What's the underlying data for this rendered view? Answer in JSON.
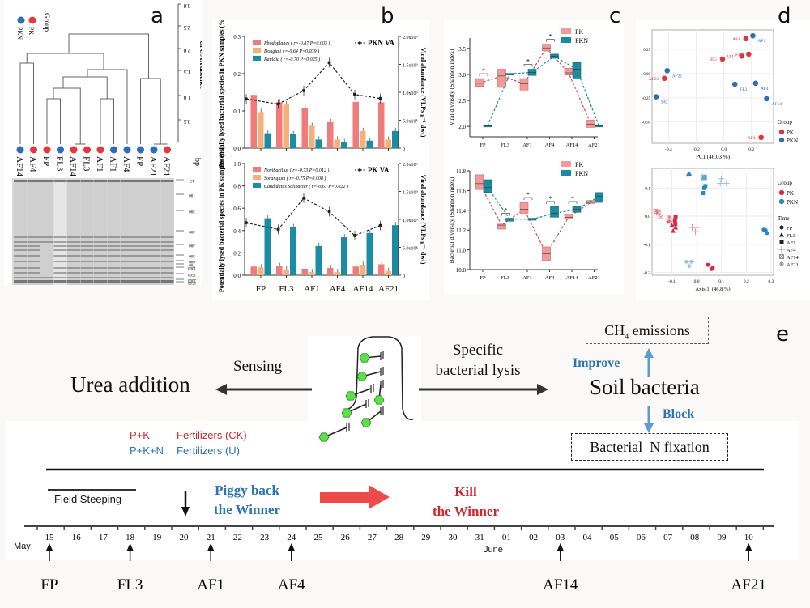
{
  "panels": {
    "a": {
      "letter": "a",
      "legend_title": "Group",
      "legend": [
        {
          "label": "PK",
          "color": "#e0393e"
        },
        {
          "label": "PKN",
          "color": "#2f6db5"
        }
      ],
      "axis_title": "UPGMA distance",
      "axis_ticks": [
        "0.5",
        "1.0",
        "1.5",
        "2.0",
        "2.5",
        "3.0"
      ],
      "leaves": [
        {
          "label": "AF14",
          "group": "PKN"
        },
        {
          "label": "AF4",
          "group": "PK"
        },
        {
          "label": "FP",
          "group": "PK"
        },
        {
          "label": "FL3",
          "group": "PKN"
        },
        {
          "label": "AF14",
          "group": "PK"
        },
        {
          "label": "FL3",
          "group": "PK"
        },
        {
          "label": "AF1",
          "group": "PK"
        },
        {
          "label": "AF1",
          "group": "PKN"
        },
        {
          "label": "AF4",
          "group": "PKN"
        },
        {
          "label": "FP",
          "group": "PKN"
        },
        {
          "label": "AF21",
          "group": "PKN"
        },
        {
          "label": "AF21",
          "group": "PK"
        }
      ],
      "gel_unit": "bp",
      "gel_markers": [
        "15",
        "100",
        "200",
        "300",
        "400",
        "500",
        "600",
        "700",
        "1000",
        "1500",
        "2000",
        "2500"
      ]
    },
    "b": {
      "letter": "b"
    },
    "c": {
      "letter": "c"
    },
    "d": {
      "letter": "d"
    },
    "e": {
      "letter": "e",
      "urea": "Urea addition",
      "sensing": "Sensing",
      "lysis_line1": "Specific",
      "lysis_line2": "bacterial lysis",
      "ch4": "CH",
      "ch4_sub": "4",
      "ch4_rest": " emissions",
      "improve": "Improve",
      "soil": "Soil bacteria",
      "block": "Block",
      "nfix": "Bacterial  N fixation",
      "fert1_a": "P+K",
      "fert1_b": "Fertilizers (CK)",
      "fert2_a": "P+K+N",
      "fert2_b": "Fertilizers (U)",
      "field_steeping": "Field Steeping",
      "piggy1": "Piggy back",
      "piggy2": "the Winner",
      "kill1": "Kill",
      "kill2": "the Winner",
      "may": "May",
      "june": "June",
      "days": [
        "15",
        "16",
        "17",
        "18",
        "19",
        "20",
        "21",
        "22",
        "23",
        "24",
        "25",
        "26",
        "27",
        "28",
        "29",
        "30",
        "31",
        "01",
        "02",
        "03",
        "04",
        "05",
        "06",
        "07",
        "08",
        "09",
        "10"
      ],
      "samples": [
        {
          "label": "FP",
          "day": "15"
        },
        {
          "label": "FL3",
          "day": "18"
        },
        {
          "label": "AF1",
          "day": "21"
        },
        {
          "label": "AF4",
          "day": "24"
        },
        {
          "label": "AF14",
          "day": "03"
        },
        {
          "label": "AF21",
          "day": "10"
        }
      ],
      "colors": {
        "red": "#d0282e",
        "blue": "#2c74b4",
        "arrow_red": "#ef4a4a",
        "light_blue": "#5b9bd5",
        "phage_green": "#5ee04a"
      }
    }
  },
  "chart_data": [
    {
      "id": "b-top",
      "type": "bar",
      "title": "",
      "categories": [
        "FP",
        "FL3",
        "AF1",
        "AF4",
        "AF14",
        "AF21"
      ],
      "ylabel": "Potentially lysed bacterial species in PKN samples (%)",
      "ylim": [
        0,
        0.3
      ],
      "yticks": [
        "0.0",
        "0.1",
        "0.2",
        "0.3"
      ],
      "y2label": "Viral abundance (VLPs g⁻¹ dwt)",
      "y2lim": [
        0,
        2000000000.0
      ],
      "y2ticks": [
        "0",
        "5.0x10⁸",
        "1.0x10⁹",
        "1.5x10⁹",
        "2.0x10⁹"
      ],
      "series": [
        {
          "name": "Rhodoplanes ( r=-0.87 P=0.003 )",
          "color": "#ef7b7b",
          "values": [
            0.143,
            0.123,
            0.108,
            0.07,
            0.124,
            0.123
          ]
        },
        {
          "name": "Dongia ( r=-0.64 P=0.039 )",
          "color": "#f2b27a",
          "values": [
            0.097,
            0.117,
            0.06,
            0.023,
            0.046,
            0.023
          ]
        },
        {
          "name": "Bauldia ( r=-0.70 P=0.025 )",
          "color": "#1a8ca3",
          "values": [
            0.04,
            0.037,
            0.023,
            0.016,
            0.02,
            0.046
          ]
        }
      ],
      "line": {
        "name": "PKN VA",
        "values": [
          880000000.0,
          790000000.0,
          1030000000.0,
          1530000000.0,
          960000000.0,
          890000000.0
        ]
      },
      "legend": "top-left"
    },
    {
      "id": "b-bottom",
      "type": "bar",
      "title": "",
      "categories": [
        "FP",
        "FL3",
        "AF1",
        "AF4",
        "AF14",
        "AF21"
      ],
      "ylabel": "Potentially lysed bacterial species in PK samples (%)",
      "ylim": [
        0,
        1.0
      ],
      "yticks": [
        "0.0",
        "0.2",
        "0.4",
        "0.6",
        "0.8",
        "1.0"
      ],
      "y2label": "Viral abundance (VLPs g⁻¹ dwt)",
      "y2lim": [
        0,
        2000000000.0
      ],
      "y2ticks": [
        "0",
        "5.0x10⁸",
        "1.0x10⁹",
        "1.5x10⁹",
        "2.0x10⁹"
      ],
      "series": [
        {
          "name": "Novibacillus ( r=-0.73 P=0.012 )",
          "color": "#ef7b7b",
          "values": [
            0.078,
            0.082,
            0.058,
            0.065,
            0.078,
            0.098
          ]
        },
        {
          "name": "Sorangium ( r=-0.75 P=0.008 )",
          "color": "#f2b27a",
          "values": [
            0.07,
            0.052,
            0.028,
            0.03,
            0.095,
            0.038
          ]
        },
        {
          "name": "Candidatus Solibacter ( r=-0.67 P=0.022 )",
          "color": "#1a8ca3",
          "values": [
            0.51,
            0.43,
            0.262,
            0.34,
            0.378,
            0.448
          ]
        }
      ],
      "line": {
        "name": "PK VA",
        "values": [
          940000000.0,
          820000000.0,
          1380000000.0,
          1140000000.0,
          710000000.0,
          890000000.0
        ]
      },
      "legend": "top-left"
    },
    {
      "id": "c-top",
      "type": "box",
      "categories": [
        "FP",
        "FL3",
        "AF1",
        "AF4",
        "AF14",
        "AF21"
      ],
      "ylabel": "Viral diversity (Shannon index)",
      "ylim": [
        1.8,
        3.7
      ],
      "yticks": [
        "2.0",
        "2.5",
        "3.0",
        "3.5"
      ],
      "series": [
        {
          "name": "PK",
          "color": "#f29a9a",
          "medians": [
            2.83,
            2.97,
            2.82,
            3.51,
            3.03,
            2.04
          ],
          "lows": [
            2.77,
            2.75,
            2.7,
            3.45,
            2.99,
            1.98
          ],
          "highs": [
            2.92,
            3.1,
            2.92,
            3.58,
            3.12,
            2.12
          ]
        },
        {
          "name": "PKN",
          "color": "#1b8ba0",
          "medians": [
            2.01,
            3.01,
            3.04,
            3.35,
            3.1,
            2.01
          ],
          "lows": [
            1.99,
            2.99,
            2.98,
            3.31,
            2.93,
            1.99
          ],
          "highs": [
            2.03,
            3.02,
            3.1,
            3.39,
            3.23,
            2.03
          ]
        }
      ],
      "significance": [
        "FP",
        "AF1",
        "AF4"
      ],
      "legend": "top-right"
    },
    {
      "id": "c-bottom",
      "type": "box",
      "categories": [
        "FP",
        "FL3",
        "AF1",
        "AF4",
        "AF14",
        "AF21"
      ],
      "ylabel": "Bacterial diversity (Shannon index)",
      "ylim": [
        10.8,
        11.8
      ],
      "yticks": [
        "10.8",
        "11.0",
        "11.2",
        "11.4",
        "11.6",
        "11.8"
      ],
      "series": [
        {
          "name": "PK",
          "color": "#f29a9a",
          "medians": [
            11.67,
            11.25,
            11.41,
            10.96,
            11.33,
            11.48
          ],
          "lows": [
            11.61,
            11.21,
            11.37,
            10.89,
            11.31,
            11.47
          ],
          "highs": [
            11.76,
            11.26,
            11.48,
            11.03,
            11.36,
            11.5
          ]
        },
        {
          "name": "PKN",
          "color": "#1b8ba0",
          "medians": [
            11.63,
            11.31,
            11.31,
            11.37,
            11.41,
            11.54
          ],
          "lows": [
            11.58,
            11.29,
            11.3,
            11.33,
            11.38,
            11.48
          ],
          "highs": [
            11.71,
            11.32,
            11.32,
            11.44,
            11.44,
            11.58
          ]
        }
      ],
      "significance": [
        "FL3",
        "AF1",
        "AF4",
        "AF14"
      ],
      "legend": "top-right"
    },
    {
      "id": "d-top",
      "type": "scatter",
      "xlabel": "PC1 (46.03 %)",
      "ylabel": "PC2 (19.54 %)",
      "xlim": [
        -0.52,
        0.36
      ],
      "ylim": [
        -0.72,
        0.45
      ],
      "xticks": [
        "-0.4",
        "-0.2",
        "0.0",
        "0.2"
      ],
      "yticks": [
        "-0.50",
        "-0.25",
        "0.00",
        "0.25"
      ],
      "legend_title": "Group",
      "series": [
        {
          "name": "PK",
          "color": "#d9373d",
          "points": [
            {
              "label": "AF1",
              "x": 0.16,
              "y": 0.36
            },
            {
              "label": "FL3",
              "x": 0.18,
              "y": 0.2
            },
            {
              "label": "AF14",
              "x": 0.13,
              "y": 0.18
            },
            {
              "label": "BG",
              "x": -0.01,
              "y": 0.15
            },
            {
              "label": "AF21",
              "x": -0.43,
              "y": -0.05
            },
            {
              "label": "AF4",
              "x": 0.27,
              "y": -0.66
            }
          ]
        },
        {
          "name": "PKN",
          "color": "#2f6db5",
          "points": [
            {
              "label": "AF1",
              "x": 0.21,
              "y": 0.39
            },
            {
              "label": "AF21",
              "x": -0.41,
              "y": 0.03
            },
            {
              "label": "AF4",
              "x": 0.23,
              "y": -0.1
            },
            {
              "label": "FL3",
              "x": 0.08,
              "y": -0.11
            },
            {
              "label": "AF14",
              "x": 0.31,
              "y": -0.26
            },
            {
              "label": "BG",
              "x": -0.49,
              "y": -0.24
            }
          ]
        }
      ],
      "legend": "right"
    },
    {
      "id": "d-bottom",
      "type": "scatter",
      "xlabel": "Axis 1. (46.8 %)",
      "ylabel": "Axis 2. (21.6%)",
      "xlim": [
        -0.18,
        0.31
      ],
      "ylim": [
        -0.21,
        0.17
      ],
      "xticks": [
        "-0.1",
        "0.0",
        "0.1",
        "0.2",
        "0.3"
      ],
      "yticks": [
        "-0.2",
        "-0.1",
        "0.0",
        "0.1"
      ],
      "legend_title": "Group",
      "time_title": "Time",
      "time_shapes": [
        {
          "label": "FP",
          "shape": "circle"
        },
        {
          "label": "FL3",
          "shape": "triangle"
        },
        {
          "label": "AF1",
          "shape": "square"
        },
        {
          "label": "AF4",
          "shape": "plus"
        },
        {
          "label": "AF14",
          "shape": "boxcross"
        },
        {
          "label": "AF21",
          "shape": "star"
        }
      ],
      "series": [
        {
          "name": "PK",
          "color": "#d42a4a",
          "points": [
            {
              "time": "FP",
              "x": 0.045,
              "y": -0.173
            },
            {
              "time": "FP",
              "x": 0.06,
              "y": -0.188
            },
            {
              "time": "FP",
              "x": 0.065,
              "y": -0.183
            },
            {
              "time": "FL3",
              "x": -0.1,
              "y": -0.032
            },
            {
              "time": "FL3",
              "x": -0.095,
              "y": -0.052
            },
            {
              "time": "FL3",
              "x": -0.085,
              "y": -0.04
            },
            {
              "time": "AF1",
              "x": -0.085,
              "y": -0.003
            },
            {
              "time": "AF1",
              "x": -0.088,
              "y": -0.015
            },
            {
              "time": "AF1",
              "x": -0.086,
              "y": -0.028
            },
            {
              "time": "AF4",
              "x": -0.018,
              "y": -0.04
            },
            {
              "time": "AF4",
              "x": -0.005,
              "y": -0.055
            },
            {
              "time": "AF4",
              "x": 0.002,
              "y": -0.04
            },
            {
              "time": "AF14",
              "x": -0.165,
              "y": 0.018
            },
            {
              "time": "AF14",
              "x": -0.155,
              "y": 0.013
            },
            {
              "time": "AF14",
              "x": -0.145,
              "y": -0.003
            },
            {
              "time": "AF21",
              "x": -0.11,
              "y": -0.003
            },
            {
              "time": "AF21",
              "x": -0.108,
              "y": -0.018
            },
            {
              "time": "AF21",
              "x": -0.115,
              "y": -0.02
            }
          ]
        },
        {
          "name": "PKN",
          "color": "#2c86c4",
          "points": [
            {
              "time": "FP",
              "x": 0.27,
              "y": -0.048
            },
            {
              "time": "FP",
              "x": 0.278,
              "y": -0.05
            },
            {
              "time": "FP",
              "x": 0.284,
              "y": -0.06
            },
            {
              "time": "FL3",
              "x": -0.035,
              "y": 0.148
            },
            {
              "time": "FL3",
              "x": -0.03,
              "y": 0.152
            },
            {
              "time": "FL3",
              "x": -0.028,
              "y": 0.149
            },
            {
              "time": "AF1",
              "x": 0.025,
              "y": 0.082
            },
            {
              "time": "AF1",
              "x": 0.03,
              "y": 0.1
            },
            {
              "time": "AF1",
              "x": 0.035,
              "y": 0.107
            },
            {
              "time": "AF4",
              "x": 0.1,
              "y": 0.133
            },
            {
              "time": "AF4",
              "x": 0.095,
              "y": 0.117
            },
            {
              "time": "AF4",
              "x": 0.12,
              "y": 0.117
            },
            {
              "time": "AF14",
              "x": 0.026,
              "y": 0.14
            },
            {
              "time": "AF14",
              "x": 0.03,
              "y": 0.132
            },
            {
              "time": "AF14",
              "x": 0.033,
              "y": 0.138
            },
            {
              "time": "AF21",
              "x": -0.04,
              "y": -0.162
            },
            {
              "time": "AF21",
              "x": -0.02,
              "y": -0.162
            },
            {
              "time": "AF21",
              "x": -0.03,
              "y": -0.177
            }
          ]
        }
      ],
      "legend": "right"
    }
  ]
}
